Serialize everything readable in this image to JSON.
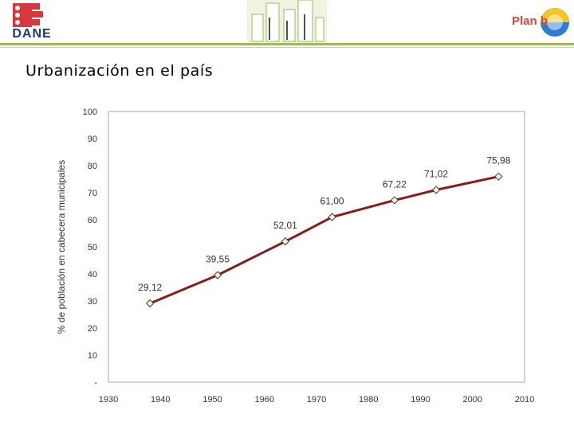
{
  "header": {
    "logo_text": "DANE",
    "plan_b_text": "Plan b"
  },
  "page": {
    "title": "Urbanización en el país"
  },
  "colors": {
    "line": "#8b1a1a",
    "marker_fill": "#f7f1e3",
    "plot_border": "#a6a6a6",
    "header_green": "#9bbb59"
  },
  "chart_data": {
    "type": "line",
    "title": "",
    "xlabel": "",
    "ylabel": "% de población en cabecera municipales",
    "xlim": [
      1930,
      2010
    ],
    "ylim": [
      0,
      100
    ],
    "x_ticks": [
      "1930",
      "1940",
      "1950",
      "1960",
      "1970",
      "1980",
      "1990",
      "2000",
      "2010"
    ],
    "y_ticks": [
      "-",
      "10",
      "20",
      "30",
      "40",
      "50",
      "60",
      "70",
      "80",
      "90",
      "100"
    ],
    "grid": false,
    "series": [
      {
        "points": [
          {
            "x": 1938,
            "y": 29.12,
            "label": "29,12"
          },
          {
            "x": 1951,
            "y": 39.55,
            "label": "39,55"
          },
          {
            "x": 1964,
            "y": 52.01,
            "label": "52,01"
          },
          {
            "x": 1973,
            "y": 61.0,
            "label": "61,00"
          },
          {
            "x": 1985,
            "y": 67.22,
            "label": "67,22"
          },
          {
            "x": 1993,
            "y": 71.02,
            "label": "71,02"
          },
          {
            "x": 2005,
            "y": 75.98,
            "label": "75,98"
          }
        ]
      }
    ]
  }
}
